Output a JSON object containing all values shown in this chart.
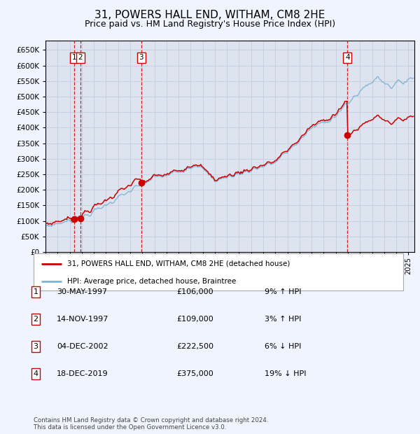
{
  "title": "31, POWERS HALL END, WITHAM, CM8 2HE",
  "subtitle": "Price paid vs. HM Land Registry's House Price Index (HPI)",
  "title_fontsize": 11,
  "subtitle_fontsize": 9,
  "background_color": "#f0f4ff",
  "plot_bg_color": "#dde4f0",
  "sale_times": [
    1997.37,
    1997.87,
    2002.92,
    2019.96
  ],
  "sale_prices": [
    106000,
    109000,
    222500,
    375000
  ],
  "sale_labels": [
    "1",
    "2",
    "3",
    "4"
  ],
  "footer": "Contains HM Land Registry data © Crown copyright and database right 2024.\nThis data is licensed under the Open Government Licence v3.0.",
  "legend_line1": "31, POWERS HALL END, WITHAM, CM8 2HE (detached house)",
  "legend_line2": "HPI: Average price, detached house, Braintree",
  "table_rows": [
    [
      "1",
      "30-MAY-1997",
      "£106,000",
      "9% ↑ HPI"
    ],
    [
      "2",
      "14-NOV-1997",
      "£109,000",
      "3% ↑ HPI"
    ],
    [
      "3",
      "04-DEC-2002",
      "£222,500",
      "6% ↓ HPI"
    ],
    [
      "4",
      "18-DEC-2019",
      "£375,000",
      "19% ↓ HPI"
    ]
  ],
  "ylim": [
    0,
    680000
  ],
  "yticks": [
    0,
    50000,
    100000,
    150000,
    200000,
    250000,
    300000,
    350000,
    400000,
    450000,
    500000,
    550000,
    600000,
    650000
  ],
  "red_line_color": "#cc0000",
  "blue_line_color": "#7fb3d3",
  "dot_color": "#cc0000",
  "vline_color": "#cc0000",
  "grid_color": "#c0c8d8",
  "box_color": "#cc0000",
  "xlim_start": 1995.0,
  "xlim_end": 2025.5
}
